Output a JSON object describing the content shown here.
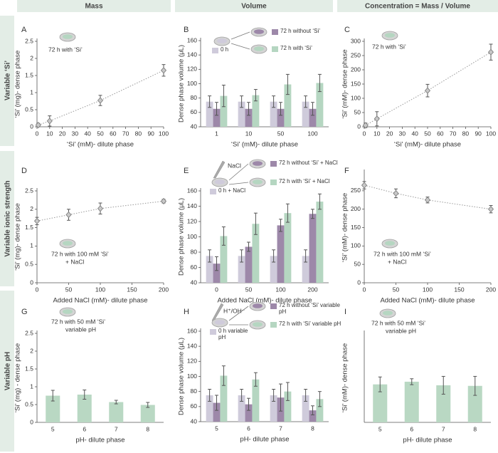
{
  "column_headers": [
    "Mass",
    "Volume",
    "Concentration = Mass / Volume"
  ],
  "row_labels": [
    "Variable ‘Si’",
    "Variable ionic strength",
    "Variable pH"
  ],
  "chart_data": [
    {
      "type": "scatter",
      "label": "A",
      "annotation": [
        "72 h with ‘Si’"
      ],
      "x_label": "‘Si’ (mM)- dilute phase",
      "y_label": "‘Si’ (mg)- dense phase",
      "x": [
        1,
        10,
        50,
        100
      ],
      "values": [
        0.05,
        0.17,
        0.77,
        1.65
      ],
      "errors": [
        0.05,
        0.15,
        0.15,
        0.17
      ],
      "color": "#c8c8c8",
      "line_style": "dotted",
      "xlim": [
        0,
        100
      ],
      "xticks": [
        0,
        10,
        20,
        30,
        40,
        50,
        60,
        70,
        80,
        90,
        100
      ],
      "ylim": [
        0,
        2.5
      ],
      "yticks": [
        0,
        0.5,
        1,
        1.5,
        2,
        2.5
      ]
    },
    {
      "type": "bar",
      "label": "B",
      "x_label": "‘Si’ (mM)- dilute phase",
      "y_label": "Dense phase volume (μL)",
      "categories": [
        "1",
        "10",
        "50",
        "100"
      ],
      "series": [
        {
          "name": "0 h",
          "color": "#cfcbdb",
          "values": [
            75,
            75,
            75,
            75
          ],
          "errors": [
            8,
            8,
            8,
            8
          ]
        },
        {
          "name": "72 h without ‘Si’",
          "color": "#9d88a9",
          "values": [
            65,
            65,
            65,
            65
          ],
          "errors": [
            9,
            9,
            9,
            9
          ]
        },
        {
          "name": "72 h with ‘Si’",
          "color": "#b5d6c1",
          "values": [
            83,
            84,
            99,
            101
          ],
          "errors": [
            15,
            8,
            14,
            12
          ]
        }
      ],
      "ylim": [
        40,
        160
      ],
      "yticks": [
        40,
        60,
        80,
        100,
        120,
        140,
        160
      ]
    },
    {
      "type": "scatter",
      "label": "C",
      "annotation": [
        "72 h with ‘Si’"
      ],
      "x_label": "‘Si’ (mM)- dilute phase",
      "y_label": "‘Si’ (mM)- dense phase",
      "x": [
        1,
        10,
        50,
        100
      ],
      "values": [
        5,
        28,
        127,
        262
      ],
      "errors": [
        8,
        25,
        22,
        28
      ],
      "color": "#c8c8c8",
      "line_style": "dotted",
      "xlim": [
        0,
        100
      ],
      "xticks": [
        0,
        10,
        20,
        30,
        40,
        50,
        60,
        70,
        80,
        90,
        100
      ],
      "ylim": [
        0,
        300
      ],
      "yticks": [
        0,
        50,
        100,
        150,
        200,
        250,
        300
      ]
    },
    {
      "type": "scatter",
      "label": "D",
      "annotation": [
        "72 h with 100 mM ‘Si’",
        "+ NaCl"
      ],
      "x_label": "Added NaCl (mM)- dilute phase",
      "y_label": "‘Si’ (mg)- dense phase",
      "x": [
        0,
        50,
        100,
        200
      ],
      "values": [
        1.68,
        1.85,
        2.02,
        2.22
      ],
      "errors": [
        0.1,
        0.15,
        0.15,
        0.05
      ],
      "color": "#c8c8c8",
      "line_style": "dotted",
      "xlim": [
        0,
        200
      ],
      "xticks": [
        0,
        50,
        100,
        150,
        200
      ],
      "ylim": [
        0,
        2.5
      ],
      "yticks": [
        0,
        0.5,
        1,
        1.5,
        2,
        2.5
      ]
    },
    {
      "type": "bar",
      "label": "E",
      "annotation": [
        "NaCl"
      ],
      "x_label": "Added NaCl (mM)- dilute phase",
      "y_label": "Dense phase volume (μL)",
      "categories": [
        "0",
        "50",
        "100",
        "200"
      ],
      "series": [
        {
          "name": "0 h + NaCl",
          "color": "#cfcbdb",
          "values": [
            75,
            75,
            75,
            75
          ],
          "errors": [
            8,
            8,
            8,
            8
          ]
        },
        {
          "name": "72 h without ‘Si’ + NaCl",
          "color": "#9d88a9",
          "values": [
            65,
            87,
            115,
            130
          ],
          "errors": [
            9,
            6,
            8,
            6
          ]
        },
        {
          "name": "72 h with ‘Si’ + NaCl",
          "color": "#b5d6c1",
          "values": [
            101,
            117,
            131,
            146
          ],
          "errors": [
            12,
            14,
            12,
            10
          ]
        }
      ],
      "ylim": [
        40,
        160
      ],
      "yticks": [
        40,
        60,
        80,
        100,
        120,
        140,
        160
      ]
    },
    {
      "type": "scatter",
      "label": "F",
      "annotation": [
        "72 h with 100 mM ‘Si’",
        "+ NaCl"
      ],
      "x_label": "Added NaCl (mM)- dilute phase",
      "y_label": "‘Si’ (mM)- dense phase",
      "x": [
        0,
        50,
        100,
        200
      ],
      "values": [
        265,
        243,
        225,
        200
      ],
      "errors": [
        10,
        12,
        8,
        10
      ],
      "color": "#c8c8c8",
      "line_style": "dotted",
      "xlim": [
        0,
        200
      ],
      "xticks": [
        0,
        50,
        100,
        150,
        200
      ],
      "ylim": [
        0,
        300
      ],
      "yticks": [
        0,
        50,
        100,
        150,
        200,
        250
      ]
    },
    {
      "type": "bar",
      "label": "G",
      "annotation": [
        "72 h  with 50 mM ‘Si’",
        "variable pH"
      ],
      "x_label": "pH- dilute phase",
      "y_label": "‘Si’ (mg) - dense phase",
      "categories": [
        "5",
        "6",
        "7",
        "8"
      ],
      "values": [
        0.75,
        0.78,
        0.57,
        0.49
      ],
      "errors": [
        0.15,
        0.13,
        0.05,
        0.07
      ],
      "color": "#b9d8c3",
      "ylim": [
        0,
        2.5
      ],
      "yticks": [
        0,
        0.5,
        1,
        1.5,
        2,
        2.5
      ]
    },
    {
      "type": "bar",
      "label": "H",
      "annotation": [
        "H⁺/OH⁻"
      ],
      "x_label": "pH- dilute phase",
      "y_label": "Dense phase volume (μL)",
      "categories": [
        "5",
        "6",
        "7",
        "8"
      ],
      "series": [
        {
          "name": "0 h variable pH",
          "color": "#cfcbdb",
          "values": [
            75,
            75,
            75,
            75
          ],
          "errors": [
            8,
            8,
            8,
            8
          ]
        },
        {
          "name": "72 h without ‘Si’ variable pH",
          "color": "#9d88a9",
          "values": [
            65,
            63,
            72,
            55
          ],
          "errors": [
            10,
            8,
            18,
            6
          ]
        },
        {
          "name": "72 h with ‘Si’ variable pH",
          "color": "#b5d6c1",
          "values": [
            101,
            96,
            80,
            70
          ],
          "errors": [
            13,
            9,
            12,
            10
          ]
        }
      ],
      "ylim": [
        40,
        160
      ],
      "yticks": [
        40,
        60,
        80,
        100,
        120,
        140,
        160
      ]
    },
    {
      "type": "bar",
      "label": "I",
      "annotation": [
        "72 h with 50 mM ‘Si’",
        "variable pH"
      ],
      "x_label": "pH- dilute phase",
      "y_label": "‘Si’ (mM)- dense phase",
      "categories": [
        "5",
        "6",
        "7",
        "8"
      ],
      "values": [
        128,
        137,
        125,
        123
      ],
      "errors": [
        25,
        10,
        30,
        32
      ],
      "color": "#b9d8c3",
      "ylim": [
        0,
        300
      ]
    }
  ]
}
